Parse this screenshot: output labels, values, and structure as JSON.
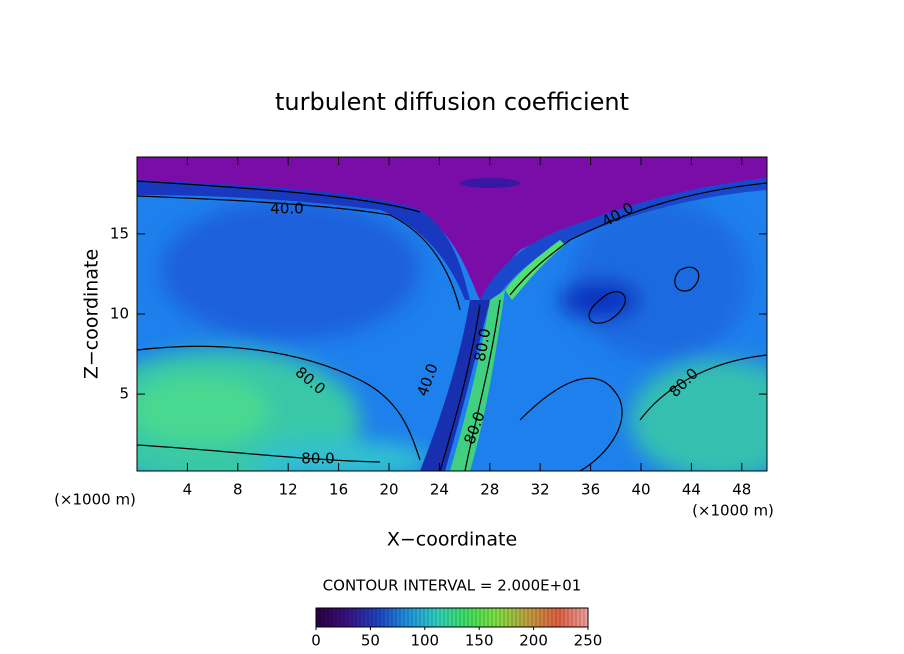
{
  "chart_data": {
    "type": "contour",
    "title": "turbulent diffusion coefficient",
    "xlabel": "X−coordinate",
    "ylabel": "Z−coordinate",
    "x_unit_left": "(×1000 m)",
    "x_unit_right": "(×1000 m)",
    "xlim": [
      0,
      50
    ],
    "xticks": [
      4,
      8,
      12,
      16,
      20,
      24,
      28,
      32,
      36,
      40,
      44,
      48
    ],
    "ylim": [
      0.2,
      19.8
    ],
    "yticks": [
      5,
      10,
      15
    ],
    "contour_interval": "CONTOUR INTERVAL = 2.000E+01",
    "annotations": [
      "40.0",
      "40.0",
      "80.0",
      "80.0",
      "80.0",
      "40.0",
      "80.0",
      "80.0"
    ],
    "colorbar": {
      "lim": [
        0,
        250
      ],
      "ticks": [
        0,
        50,
        100,
        150,
        200,
        250
      ],
      "colors": [
        "#2a0040",
        "#3a1080",
        "#2040c0",
        "#2090e0",
        "#30d0c0",
        "#40e060",
        "#80e040",
        "#c0a040",
        "#e06040",
        "#f0a0a0"
      ]
    }
  }
}
